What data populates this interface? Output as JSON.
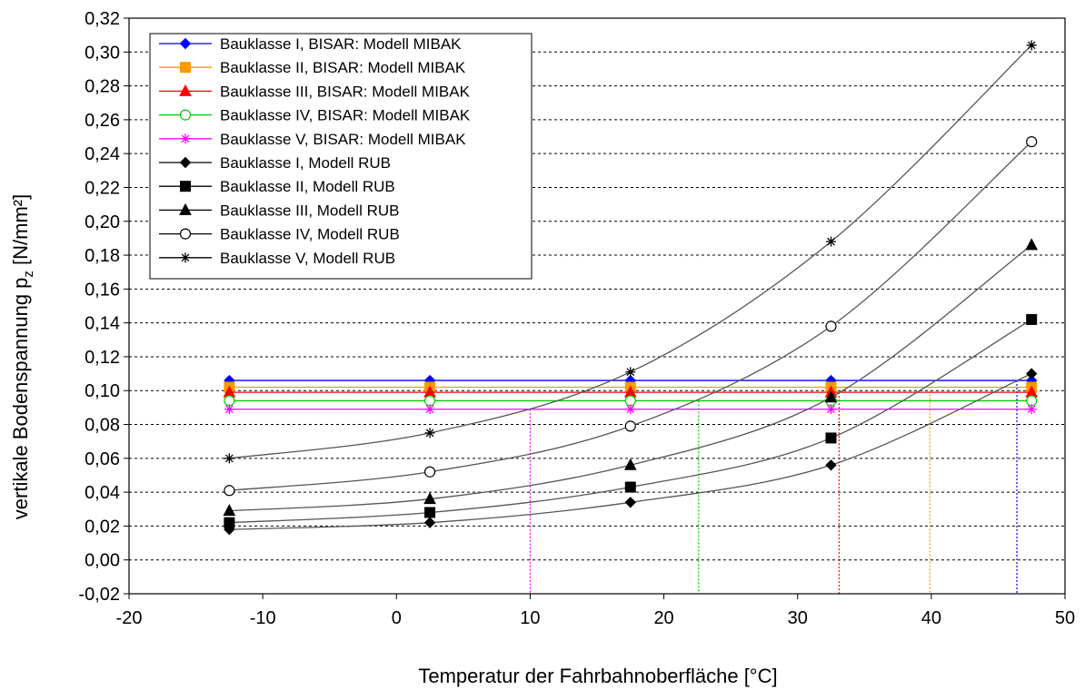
{
  "chart_data": {
    "type": "line",
    "xlabel": "Temperatur der Fahrbahnoberfläche [°C]",
    "ylabel": {
      "main": "vertikale Bodenspannung p",
      "sub": "z",
      "unit": " [N/mm²]"
    },
    "xlim": [
      -20,
      50
    ],
    "ylim": [
      -0.02,
      0.32
    ],
    "x_ticks": [
      "-20",
      "-10",
      "0",
      "10",
      "20",
      "30",
      "40",
      "50"
    ],
    "y_ticks": [
      "-0,02",
      "0,00",
      "0,02",
      "0,04",
      "0,06",
      "0,08",
      "0,10",
      "0,12",
      "0,14",
      "0,16",
      "0,18",
      "0,20",
      "0,22",
      "0,24",
      "0,26",
      "0,28",
      "0,30",
      "0,32"
    ],
    "grid": "horizontal dashed",
    "legend_position": "top-left",
    "x": [
      -12.5,
      2.5,
      17.5,
      32.5,
      47.5
    ],
    "series": [
      {
        "name": "Bauklasse I, BISAR: Modell MIBAK",
        "values": [
          0.106,
          0.106,
          0.106,
          0.106,
          0.106
        ],
        "color": "#0000ff",
        "marker": "diamond",
        "filled": true
      },
      {
        "name": "Bauklasse II, BISAR: Modell MIBAK",
        "values": [
          0.102,
          0.102,
          0.102,
          0.102,
          0.102
        ],
        "color": "#ff9900",
        "marker": "square",
        "filled": true
      },
      {
        "name": "Bauklasse III, BISAR: Modell MIBAK",
        "values": [
          0.099,
          0.099,
          0.099,
          0.099,
          0.099
        ],
        "color": "#ff0000",
        "marker": "triangle",
        "filled": true
      },
      {
        "name": "Bauklasse IV, BISAR: Modell MIBAK",
        "values": [
          0.094,
          0.094,
          0.094,
          0.094,
          0.094
        ],
        "color": "#00cc00",
        "marker": "circle",
        "filled": false
      },
      {
        "name": "Bauklasse V, BISAR: Modell MIBAK",
        "values": [
          0.089,
          0.089,
          0.089,
          0.089,
          0.089
        ],
        "color": "#ff00ff",
        "marker": "star",
        "filled": false
      },
      {
        "name": "Bauklasse I, Modell RUB",
        "values": [
          0.018,
          0.022,
          0.034,
          0.056,
          0.11
        ],
        "color": "#000000",
        "marker": "diamond",
        "filled": true
      },
      {
        "name": "Bauklasse II, Modell RUB",
        "values": [
          0.022,
          0.028,
          0.043,
          0.072,
          0.142
        ],
        "color": "#000000",
        "marker": "square",
        "filled": true
      },
      {
        "name": "Bauklasse III, Modell RUB",
        "values": [
          0.029,
          0.036,
          0.056,
          0.096,
          0.186
        ],
        "color": "#000000",
        "marker": "triangle",
        "filled": true
      },
      {
        "name": "Bauklasse IV, Modell RUB",
        "values": [
          0.041,
          0.052,
          0.079,
          0.138,
          0.247
        ],
        "color": "#000000",
        "marker": "circle",
        "filled": false
      },
      {
        "name": "Bauklasse V, Modell RUB",
        "values": [
          0.06,
          0.075,
          0.111,
          0.188,
          0.304
        ],
        "color": "#000000",
        "marker": "star",
        "filled": false
      }
    ],
    "intersection_lines": [
      {
        "x": 10.0,
        "y": 0.089,
        "color": "#ff00ff"
      },
      {
        "x": 22.6,
        "y": 0.094,
        "color": "#00cc00"
      },
      {
        "x": 33.1,
        "y": 0.099,
        "color": "#ff0000"
      },
      {
        "x": 39.9,
        "y": 0.102,
        "color": "#ff9900"
      },
      {
        "x": 46.4,
        "y": 0.106,
        "color": "#0000ff"
      }
    ]
  }
}
